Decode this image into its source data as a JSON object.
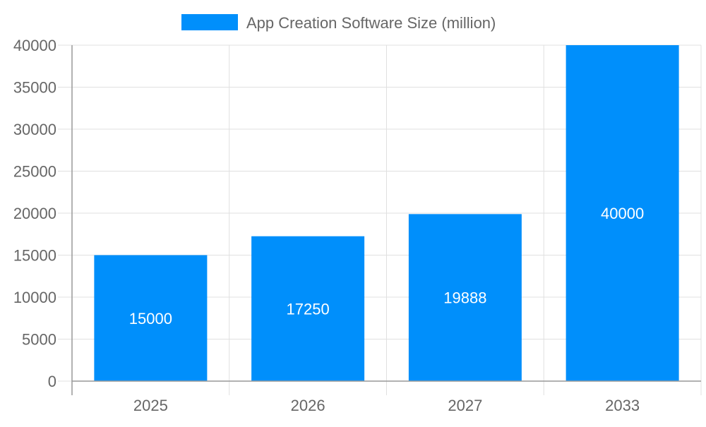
{
  "chart_data": {
    "type": "bar",
    "title": "",
    "xlabel": "",
    "ylabel": "",
    "categories": [
      "2025",
      "2026",
      "2027",
      "2033"
    ],
    "series": [
      {
        "name": "App Creation Software Size (million)",
        "values": [
          15000,
          17250,
          19888,
          40000
        ],
        "color": "#008ffb"
      }
    ],
    "data_labels": [
      "15000",
      "17250",
      "19888",
      "40000"
    ],
    "ylim": [
      0,
      40000
    ],
    "yticks": [
      0,
      5000,
      10000,
      15000,
      20000,
      25000,
      30000,
      35000,
      40000
    ],
    "grid": true,
    "legend_position": "top"
  }
}
